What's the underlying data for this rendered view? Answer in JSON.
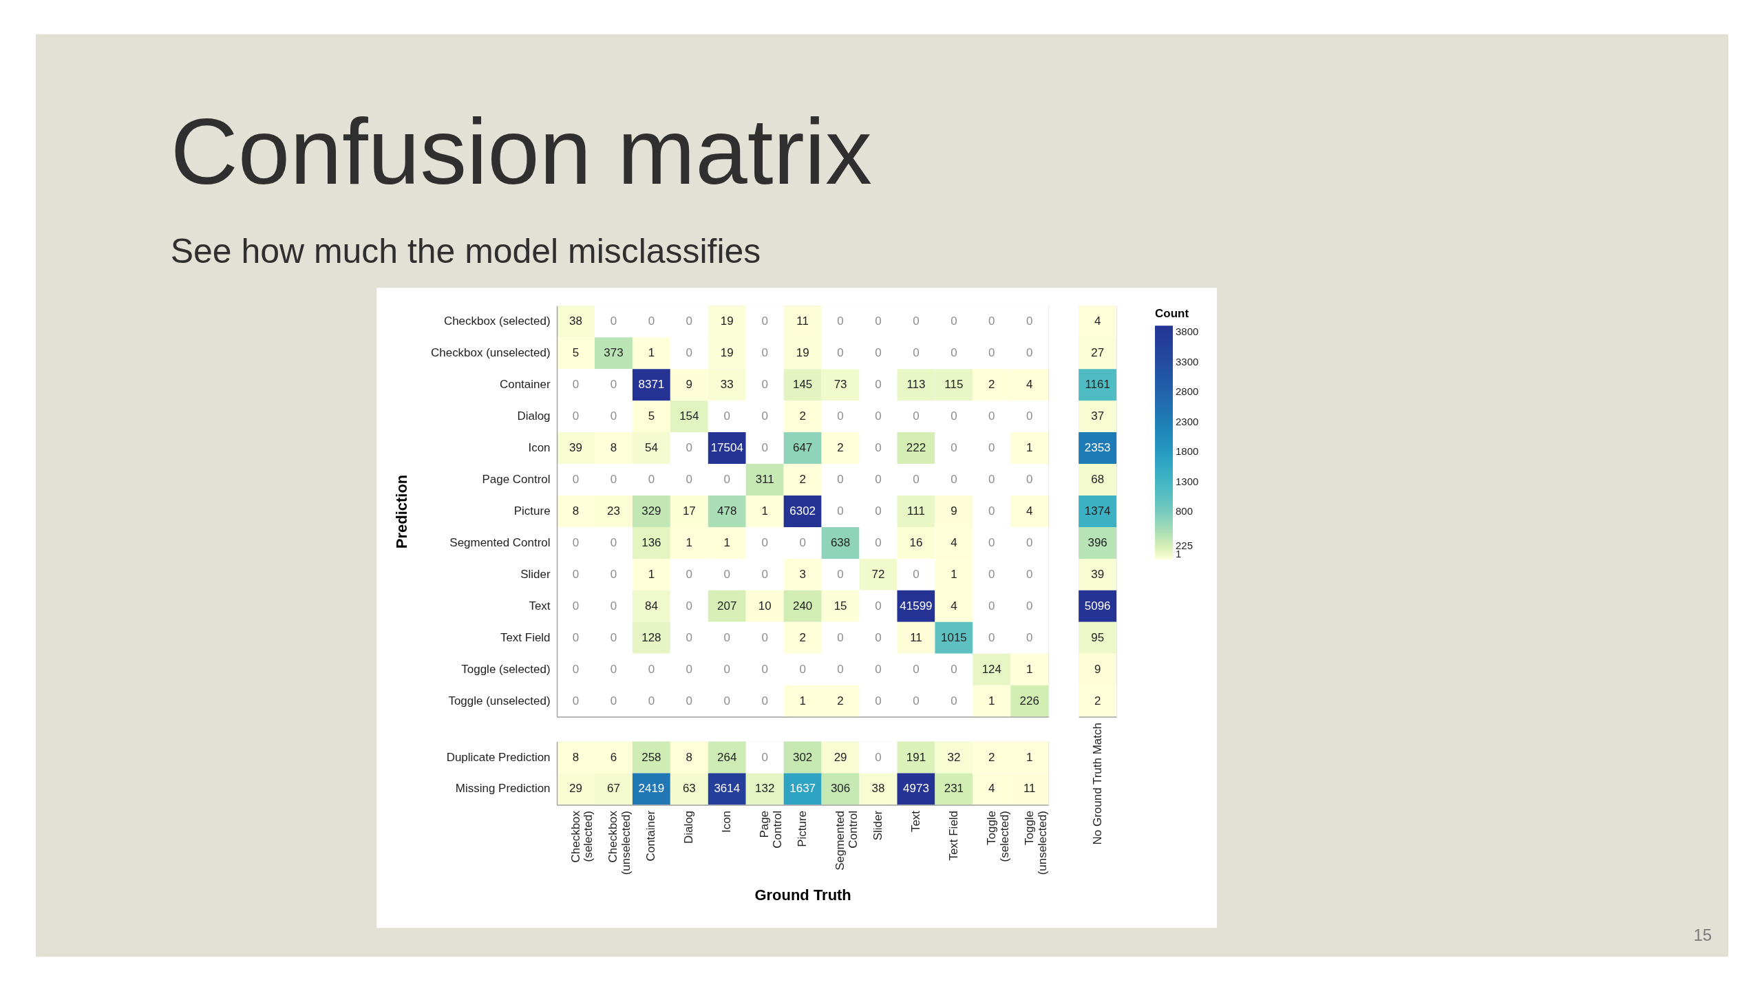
{
  "chart_data": [
    {
      "type": "heatmap",
      "title": "Confusion matrix",
      "subtitle": "See how much the model misclassifies",
      "ylabel": "Prediction",
      "annotations": [
        "15"
      ],
      "categories": [
        null,
        null,
        null,
        null,
        null,
        null,
        null,
        null,
        null,
        null,
        null,
        null,
        null
      ],
      "y_categories": [
        "Checkbox (selected)",
        "Checkbox (unselected)",
        "Container",
        "Dialog",
        "Icon",
        "Page Control",
        "Picture",
        "Segmented Control",
        "Slider",
        "Text",
        "Text Field",
        "Toggle (selected)",
        "Toggle (unselected)"
      ],
      "cells": [
        [
          38,
          0,
          0,
          0,
          19,
          0,
          11,
          0,
          0,
          0,
          0,
          0,
          0
        ],
        [
          5,
          373,
          1,
          0,
          19,
          0,
          19,
          0,
          0,
          0,
          0,
          0,
          0
        ],
        [
          0,
          0,
          8371,
          9,
          33,
          0,
          145,
          73,
          0,
          113,
          115,
          2,
          4
        ],
        [
          0,
          0,
          5,
          154,
          0,
          0,
          2,
          0,
          0,
          0,
          0,
          0,
          0
        ],
        [
          39,
          8,
          54,
          0,
          17504,
          0,
          647,
          2,
          0,
          222,
          0,
          0,
          1
        ],
        [
          0,
          0,
          0,
          0,
          0,
          311,
          2,
          0,
          0,
          0,
          0,
          0,
          0
        ],
        [
          8,
          23,
          329,
          17,
          478,
          1,
          6302,
          0,
          0,
          111,
          9,
          0,
          4
        ],
        [
          0,
          0,
          136,
          1,
          1,
          0,
          0,
          638,
          0,
          16,
          4,
          0,
          0
        ],
        [
          0,
          0,
          1,
          0,
          0,
          0,
          3,
          0,
          72,
          0,
          1,
          0,
          0
        ],
        [
          0,
          0,
          84,
          0,
          207,
          10,
          240,
          15,
          0,
          41599,
          4,
          0,
          0
        ],
        [
          0,
          0,
          128,
          0,
          0,
          0,
          2,
          0,
          0,
          11,
          1015,
          0,
          0
        ],
        [
          0,
          0,
          0,
          0,
          0,
          0,
          0,
          0,
          0,
          0,
          0,
          124,
          1
        ],
        [
          0,
          0,
          0,
          0,
          0,
          0,
          1,
          2,
          0,
          0,
          0,
          1,
          226
        ]
      ],
      "data_labels": true,
      "tick_labels": "y"
    },
    {
      "type": "heatmap",
      "categories": [
        "No Ground Truth Match"
      ],
      "y_categories": [
        null,
        null,
        null,
        null,
        null,
        null,
        null,
        null,
        null,
        null,
        null,
        null,
        null
      ],
      "cells": [
        [
          4
        ],
        [
          27
        ],
        [
          1161
        ],
        [
          37
        ],
        [
          2353
        ],
        [
          68
        ],
        [
          1374
        ],
        [
          396
        ],
        [
          39
        ],
        [
          5096
        ],
        [
          95
        ],
        [
          9
        ],
        [
          2
        ]
      ],
      "data_labels": true,
      "tick_labels": "x",
      "clabel": "Count",
      "clim": [
        1,
        3900
      ],
      "cticks": [
        1,
        225,
        800,
        1300,
        1800,
        2300,
        2800,
        3300,
        3800
      ]
    },
    {
      "type": "heatmap",
      "xlabel": "Ground Truth",
      "categories": [
        "Checkbox (selected)",
        "Checkbox (unselected)",
        "Container",
        "Dialog",
        "Icon",
        "Page Control",
        "Picture",
        "Segmented Control",
        "Slider",
        "Text",
        "Text Field",
        "Toggle (selected)",
        "Toggle (unselected)"
      ],
      "y_categories": [
        "Duplicate Prediction",
        "Missing Prediction"
      ],
      "cells": [
        [
          8,
          6,
          258,
          8,
          264,
          0,
          302,
          29,
          0,
          191,
          32,
          2,
          1
        ],
        [
          29,
          67,
          2419,
          63,
          3614,
          132,
          1637,
          306,
          38,
          4973,
          231,
          4,
          11
        ]
      ],
      "data_labels": true
    }
  ]
}
